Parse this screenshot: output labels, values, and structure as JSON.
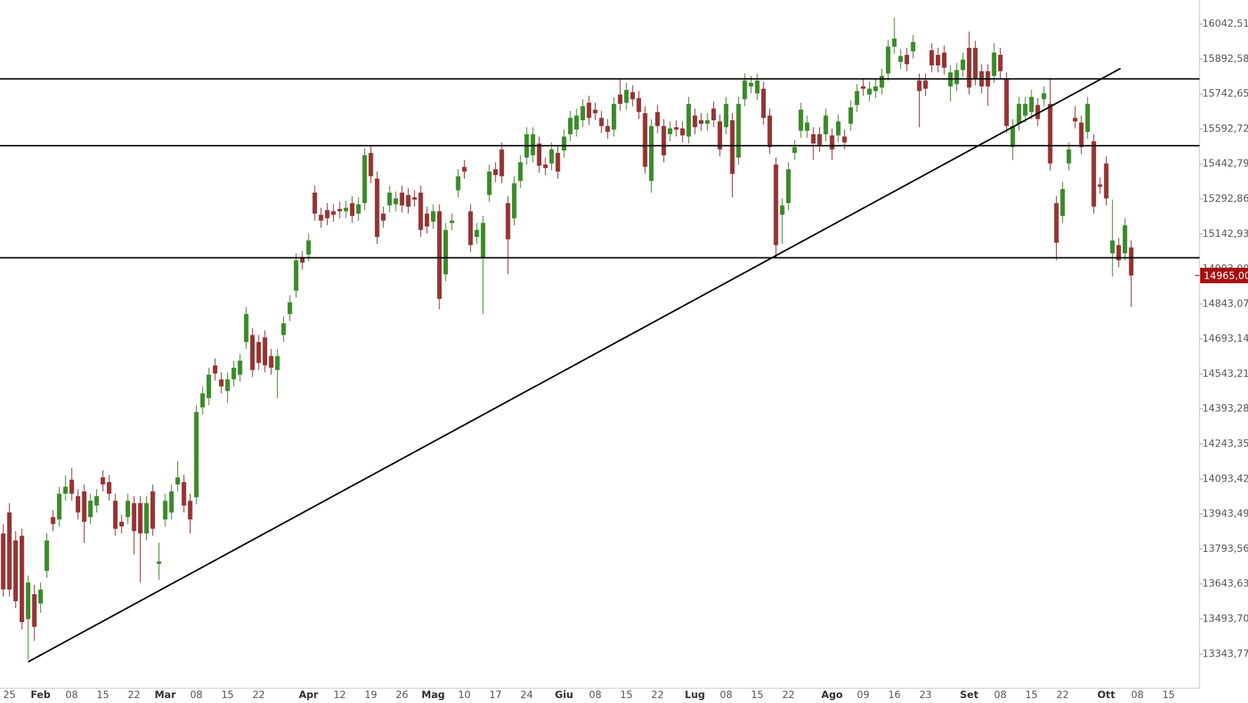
{
  "chart_data": {
    "type": "candlestick",
    "up_color": "#3b8a2a",
    "down_color": "#943434",
    "line_color": "#000000",
    "ylim": [
      13197,
      16145
    ],
    "yticks": [
      {
        "value": 16042.51,
        "label": "16042,51"
      },
      {
        "value": 15892.58,
        "label": "15892,58"
      },
      {
        "value": 15742.65,
        "label": "15742,65"
      },
      {
        "value": 15592.72,
        "label": "15592,72"
      },
      {
        "value": 15442.79,
        "label": "15442,79"
      },
      {
        "value": 15292.86,
        "label": "15292,86"
      },
      {
        "value": 15142.93,
        "label": "15142,93"
      },
      {
        "value": 14993,
        "label": "14993,00"
      },
      {
        "value": 14843.07,
        "label": "14843,07"
      },
      {
        "value": 14693.14,
        "label": "14693,14"
      },
      {
        "value": 14543.21,
        "label": "14543,21"
      },
      {
        "value": 14393.28,
        "label": "14393,28"
      },
      {
        "value": 14243.35,
        "label": "14243,35"
      },
      {
        "value": 14093.42,
        "label": "14093,42"
      },
      {
        "value": 13943.49,
        "label": "13943,49"
      },
      {
        "value": 13793.56,
        "label": "13793,56"
      },
      {
        "value": 13643.63,
        "label": "13643,63"
      },
      {
        "value": 13493.7,
        "label": "13493,70"
      },
      {
        "value": 13343.77,
        "label": "13343,77"
      }
    ],
    "last_price": {
      "value": 14965,
      "label": "14965,00"
    },
    "hlines": [
      15807,
      15521,
      15041
    ],
    "trendline": {
      "x": [
        4,
        179.3
      ],
      "values": [
        13310,
        15852
      ]
    },
    "categories": [
      null,
      "25",
      null,
      null,
      null,
      null,
      "Feb",
      null,
      null,
      null,
      null,
      "08",
      null,
      null,
      null,
      null,
      "15",
      null,
      null,
      null,
      null,
      "22",
      null,
      null,
      null,
      null,
      "Mar",
      null,
      null,
      null,
      null,
      "08",
      null,
      null,
      null,
      null,
      "15",
      null,
      null,
      null,
      null,
      "22",
      null,
      null,
      null,
      null,
      null,
      null,
      null,
      "Apr",
      null,
      null,
      null,
      null,
      "12",
      null,
      null,
      null,
      null,
      "19",
      null,
      null,
      null,
      null,
      "26",
      null,
      null,
      null,
      null,
      "Mag",
      null,
      null,
      null,
      null,
      "10",
      null,
      null,
      null,
      null,
      "17",
      null,
      null,
      null,
      null,
      "24",
      null,
      null,
      null,
      null,
      null,
      "Giu",
      null,
      null,
      null,
      null,
      "08",
      null,
      null,
      null,
      null,
      "15",
      null,
      null,
      null,
      null,
      "22",
      null,
      null,
      null,
      null,
      null,
      "Lug",
      null,
      null,
      null,
      null,
      "08",
      null,
      null,
      null,
      null,
      "15",
      null,
      null,
      null,
      null,
      "22",
      null,
      null,
      null,
      null,
      null,
      null,
      "Ago",
      null,
      null,
      null,
      null,
      "09",
      null,
      null,
      null,
      null,
      "16",
      null,
      null,
      null,
      null,
      "23",
      null,
      null,
      null,
      null,
      null,
      null,
      "Set",
      null,
      null,
      null,
      null,
      "08",
      null,
      null,
      null,
      null,
      "15",
      null,
      null,
      null,
      null,
      "22",
      null,
      null,
      null,
      null,
      null,
      null,
      "Ott",
      null,
      null,
      null,
      null,
      "08",
      null,
      null,
      null,
      null,
      "15",
      null,
      null
    ],
    "ohlc": [
      [
        13860,
        13900,
        13590,
        13620
      ],
      [
        13950,
        13990,
        13590,
        13620
      ],
      [
        13830,
        13870,
        13540,
        13570
      ],
      [
        13850,
        13880,
        13450,
        13480
      ],
      [
        13493,
        13680,
        13320,
        13650
      ],
      [
        13600,
        13640,
        13400,
        13460
      ],
      [
        13560,
        13650,
        13520,
        13620
      ],
      [
        13700,
        13860,
        13670,
        13830
      ],
      [
        13930,
        13960,
        13870,
        13900
      ],
      [
        13920,
        14060,
        13890,
        14030
      ],
      [
        14030,
        14110,
        14000,
        14060
      ],
      [
        14090,
        14140,
        14000,
        14030
      ],
      [
        14020,
        14050,
        13920,
        13950
      ],
      [
        14040,
        14070,
        13820,
        13910
      ],
      [
        13930,
        14030,
        13900,
        14000
      ],
      [
        13980,
        14050,
        13950,
        14020
      ],
      [
        14100,
        14130,
        14040,
        14070
      ],
      [
        14080,
        14110,
        14000,
        14030
      ],
      [
        14000,
        14030,
        13850,
        13880
      ],
      [
        13910,
        13940,
        13860,
        13890
      ],
      [
        13930,
        14030,
        13900,
        14000
      ],
      [
        13990,
        14020,
        13770,
        13870
      ],
      [
        13990,
        14020,
        13650,
        13860
      ],
      [
        13860,
        14020,
        13830,
        13990
      ],
      [
        14040,
        14070,
        13850,
        13880
      ],
      [
        13730,
        13820,
        13660,
        13740
      ],
      [
        13920,
        14030,
        13890,
        14000
      ],
      [
        13950,
        14070,
        13920,
        14040
      ],
      [
        14070,
        14170,
        14040,
        14100
      ],
      [
        14080,
        14110,
        13950,
        13980
      ],
      [
        14000,
        14030,
        13860,
        13920
      ],
      [
        14015,
        14410,
        13985,
        14380
      ],
      [
        14400,
        14490,
        14370,
        14460
      ],
      [
        14440,
        14570,
        14410,
        14540
      ],
      [
        14580,
        14610,
        14515,
        14545
      ],
      [
        14520,
        14550,
        14460,
        14490
      ],
      [
        14470,
        14550,
        14420,
        14520
      ],
      [
        14520,
        14600,
        14490,
        14570
      ],
      [
        14540,
        14630,
        14510,
        14600
      ],
      [
        14680,
        14830,
        14650,
        14800
      ],
      [
        14710,
        14740,
        14530,
        14560
      ],
      [
        14680,
        14710,
        14560,
        14590
      ],
      [
        14700,
        14730,
        14550,
        14580
      ],
      [
        14620,
        14650,
        14540,
        14570
      ],
      [
        14560,
        14650,
        14440,
        14620
      ],
      [
        14710,
        14790,
        14680,
        14760
      ],
      [
        14800,
        14880,
        14770,
        14850
      ],
      [
        14900,
        15060,
        14870,
        15030
      ],
      [
        15040,
        15070,
        14990,
        15020
      ],
      [
        15055,
        15145,
        15025,
        15115
      ],
      [
        15320,
        15350,
        15200,
        15230
      ],
      [
        15225,
        15255,
        15170,
        15200
      ],
      [
        15245,
        15275,
        15180,
        15210
      ],
      [
        15240,
        15270,
        15195,
        15225
      ],
      [
        15250,
        15280,
        15210,
        15240
      ],
      [
        15240,
        15285,
        15210,
        15255
      ],
      [
        15275,
        15305,
        15190,
        15220
      ],
      [
        15230,
        15300,
        15200,
        15270
      ],
      [
        15275,
        15510,
        15245,
        15480
      ],
      [
        15490,
        15520,
        15360,
        15390
      ],
      [
        15380,
        15410,
        15100,
        15130
      ],
      [
        15230,
        15260,
        15170,
        15200
      ],
      [
        15265,
        15350,
        15235,
        15320
      ],
      [
        15270,
        15325,
        15240,
        15295
      ],
      [
        15320,
        15350,
        15235,
        15265
      ],
      [
        15310,
        15340,
        15230,
        15260
      ],
      [
        15300,
        15330,
        15260,
        15290
      ],
      [
        15320,
        15350,
        15130,
        15160
      ],
      [
        15230,
        15260,
        15145,
        15175
      ],
      [
        15195,
        15270,
        15165,
        15240
      ],
      [
        15240,
        15270,
        14820,
        14865
      ],
      [
        14970,
        15190,
        14940,
        15160
      ],
      [
        15190,
        15230,
        15160,
        15200
      ],
      [
        15330,
        15420,
        15300,
        15390
      ],
      [
        15430,
        15460,
        15380,
        15410
      ],
      [
        15240,
        15270,
        15065,
        15095
      ],
      [
        15130,
        15190,
        15100,
        15160
      ],
      [
        15040,
        15220,
        14800,
        15190
      ],
      [
        15310,
        15440,
        15280,
        15410
      ],
      [
        15420,
        15450,
        15365,
        15395
      ],
      [
        15505,
        15535,
        15360,
        15390
      ],
      [
        15275,
        15305,
        14970,
        15120
      ],
      [
        15210,
        15390,
        15180,
        15360
      ],
      [
        15370,
        15480,
        15340,
        15450
      ],
      [
        15470,
        15600,
        15440,
        15570
      ],
      [
        15480,
        15600,
        15450,
        15570
      ],
      [
        15530,
        15560,
        15405,
        15435
      ],
      [
        15440,
        15470,
        15395,
        15425
      ],
      [
        15445,
        15535,
        15415,
        15505
      ],
      [
        15490,
        15520,
        15380,
        15410
      ],
      [
        15500,
        15590,
        15470,
        15560
      ],
      [
        15570,
        15670,
        15540,
        15640
      ],
      [
        15590,
        15680,
        15560,
        15650
      ],
      [
        15630,
        15720,
        15600,
        15690
      ],
      [
        15705,
        15735,
        15610,
        15640
      ],
      [
        15675,
        15705,
        15630,
        15660
      ],
      [
        15640,
        15670,
        15575,
        15605
      ],
      [
        15605,
        15635,
        15550,
        15580
      ],
      [
        15590,
        15730,
        15560,
        15700
      ],
      [
        15740,
        15810,
        15670,
        15700
      ],
      [
        15705,
        15790,
        15675,
        15760
      ],
      [
        15750,
        15780,
        15690,
        15720
      ],
      [
        15725,
        15755,
        15635,
        15665
      ],
      [
        15660,
        15690,
        15400,
        15430
      ],
      [
        15370,
        15635,
        15320,
        15605
      ],
      [
        15665,
        15695,
        15575,
        15605
      ],
      [
        15605,
        15635,
        15450,
        15480
      ],
      [
        15570,
        15625,
        15540,
        15595
      ],
      [
        15600,
        15630,
        15560,
        15590
      ],
      [
        15595,
        15625,
        15535,
        15565
      ],
      [
        15560,
        15730,
        15530,
        15700
      ],
      [
        15650,
        15680,
        15570,
        15600
      ],
      [
        15630,
        15660,
        15585,
        15615
      ],
      [
        15615,
        15660,
        15585,
        15630
      ],
      [
        15680,
        15710,
        15600,
        15630
      ],
      [
        15625,
        15655,
        15475,
        15505
      ],
      [
        15600,
        15730,
        15570,
        15700
      ],
      [
        15630,
        15660,
        15300,
        15400
      ],
      [
        15470,
        15730,
        15440,
        15700
      ],
      [
        15720,
        15830,
        15690,
        15800
      ],
      [
        15775,
        15820,
        15745,
        15790
      ],
      [
        15745,
        15830,
        15715,
        15800
      ],
      [
        15765,
        15795,
        15610,
        15640
      ],
      [
        15650,
        15680,
        15485,
        15515
      ],
      [
        15440,
        15470,
        15040,
        15095
      ],
      [
        15225,
        15295,
        15100,
        15265
      ],
      [
        15275,
        15450,
        15245,
        15420
      ],
      [
        15490,
        15545,
        15460,
        15515
      ],
      [
        15585,
        15705,
        15555,
        15675
      ],
      [
        15585,
        15650,
        15555,
        15620
      ],
      [
        15570,
        15600,
        15460,
        15530
      ],
      [
        15570,
        15600,
        15495,
        15525
      ],
      [
        15570,
        15680,
        15540,
        15650
      ],
      [
        15565,
        15595,
        15460,
        15505
      ],
      [
        15565,
        15655,
        15535,
        15625
      ],
      [
        15560,
        15590,
        15505,
        15535
      ],
      [
        15615,
        15715,
        15585,
        15685
      ],
      [
        15695,
        15785,
        15665,
        15755
      ],
      [
        15775,
        15805,
        15735,
        15765
      ],
      [
        15740,
        15795,
        15710,
        15765
      ],
      [
        15755,
        15805,
        15725,
        15775
      ],
      [
        15770,
        15850,
        15740,
        15820
      ],
      [
        15830,
        15975,
        15800,
        15945
      ],
      [
        15945,
        16070,
        15915,
        15980
      ],
      [
        15880,
        15935,
        15850,
        15905
      ],
      [
        15910,
        15940,
        15840,
        15870
      ],
      [
        15925,
        15995,
        15895,
        15965
      ],
      [
        15800,
        15830,
        15600,
        15755
      ],
      [
        15800,
        15830,
        15735,
        15765
      ],
      [
        15930,
        15960,
        15835,
        15865
      ],
      [
        15910,
        15940,
        15835,
        15865
      ],
      [
        15920,
        15950,
        15825,
        15855
      ],
      [
        15775,
        15865,
        15710,
        15835
      ],
      [
        15785,
        15875,
        15755,
        15845
      ],
      [
        15845,
        15920,
        15815,
        15890
      ],
      [
        15940,
        16010,
        15740,
        15770
      ],
      [
        15940,
        15970,
        15780,
        15810
      ],
      [
        15840,
        15870,
        15745,
        15775
      ],
      [
        15840,
        15870,
        15690,
        15775
      ],
      [
        15820,
        15960,
        15790,
        15920
      ],
      [
        15910,
        15940,
        15810,
        15840
      ],
      [
        15805,
        15835,
        15575,
        15605
      ],
      [
        15515,
        15635,
        15460,
        15605
      ],
      [
        15615,
        15730,
        15585,
        15700
      ],
      [
        15650,
        15730,
        15620,
        15700
      ],
      [
        15665,
        15760,
        15635,
        15730
      ],
      [
        15695,
        15725,
        15605,
        15635
      ],
      [
        15720,
        15775,
        15690,
        15745
      ],
      [
        15700,
        15810,
        15415,
        15445
      ],
      [
        15275,
        15305,
        15030,
        15105
      ],
      [
        15220,
        15365,
        15190,
        15335
      ],
      [
        15445,
        15535,
        15415,
        15505
      ],
      [
        15640,
        15690,
        15595,
        15625
      ],
      [
        15620,
        15650,
        15485,
        15515
      ],
      [
        15580,
        15730,
        15550,
        15700
      ],
      [
        15540,
        15570,
        15230,
        15260
      ],
      [
        15355,
        15385,
        15315,
        15345
      ],
      [
        15445,
        15475,
        15265,
        15295
      ],
      [
        15060,
        15290,
        14960,
        15115
      ],
      [
        15095,
        15125,
        15000,
        15030
      ],
      [
        15060,
        15210,
        15030,
        15180
      ],
      [
        15085,
        15115,
        14830,
        14965
      ],
      null,
      null,
      null,
      null,
      null,
      null,
      null,
      null
    ]
  }
}
